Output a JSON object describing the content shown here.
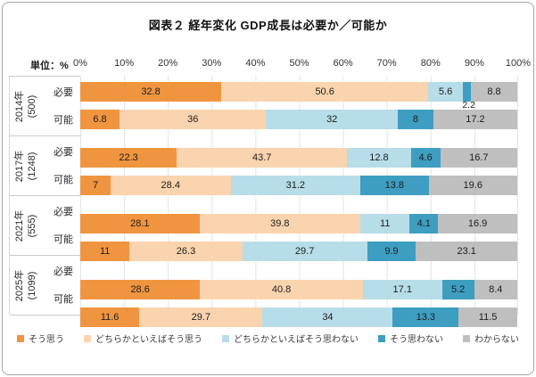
{
  "title": "図表２ 経年変化 GDP成長は必要か／可能か",
  "unit_label": "単位：%",
  "x_axis_ticks": [
    "0%",
    "10%",
    "20%",
    "30%",
    "40%",
    "50%",
    "60%",
    "70%",
    "80%",
    "90%",
    "100%"
  ],
  "chart_data": {
    "type": "bar",
    "variant": "horizontal-stacked",
    "title": "図表２ 経年変化 GDP成長は必要か／可能か",
    "unit": "%",
    "xlim": [
      0,
      100
    ],
    "grid": "vertical gridlines every 10%",
    "legend_position": "bottom",
    "series": [
      {
        "name": "そう思う",
        "color": "#F0953F"
      },
      {
        "name": "どちらかといえばそう思う",
        "color": "#FAD4AE"
      },
      {
        "name": "どちらかといえばそう思わない",
        "color": "#B7DDE8"
      },
      {
        "name": "そう思わない",
        "color": "#3D9EC1"
      },
      {
        "name": "わからない",
        "color": "#BFBFBF"
      }
    ],
    "row_label_necessary": "必要",
    "row_label_possible": "可能",
    "groups": [
      {
        "year": "2014年",
        "n": "(500)",
        "rows": [
          {
            "label": "必要",
            "values": [
              32.8,
              50.6,
              5.6,
              2.2,
              8.8
            ]
          },
          {
            "label": "可能",
            "values": [
              6.8,
              36,
              32,
              8,
              17.2
            ]
          }
        ]
      },
      {
        "year": "2017年",
        "n": "(1248)",
        "rows": [
          {
            "label": "必要",
            "values": [
              22.3,
              43.7,
              12.8,
              4.6,
              16.7
            ]
          },
          {
            "label": "可能",
            "values": [
              7,
              28.4,
              31.2,
              13.8,
              19.6
            ]
          }
        ]
      },
      {
        "year": "2021年",
        "n": "(555)",
        "rows": [
          {
            "label": "必要",
            "values": [
              28.1,
              39.8,
              11,
              4.1,
              16.9
            ]
          },
          {
            "label": "可能",
            "values": [
              11,
              26.3,
              29.7,
              9.9,
              23.1
            ]
          }
        ]
      },
      {
        "year": "2025年",
        "n": "(1099)",
        "rows": [
          {
            "label": "必要",
            "values": [
              28.6,
              40.8,
              17.1,
              5.2,
              8.4
            ]
          },
          {
            "label": "可能",
            "values": [
              11.6,
              29.7,
              34,
              13.3,
              11.5
            ]
          }
        ]
      }
    ]
  },
  "colors": {
    "grid": "#dde4ea",
    "label_border": "#c9c9c9",
    "frame_border": "#a6a6a6",
    "text": "#2b2b2b"
  }
}
